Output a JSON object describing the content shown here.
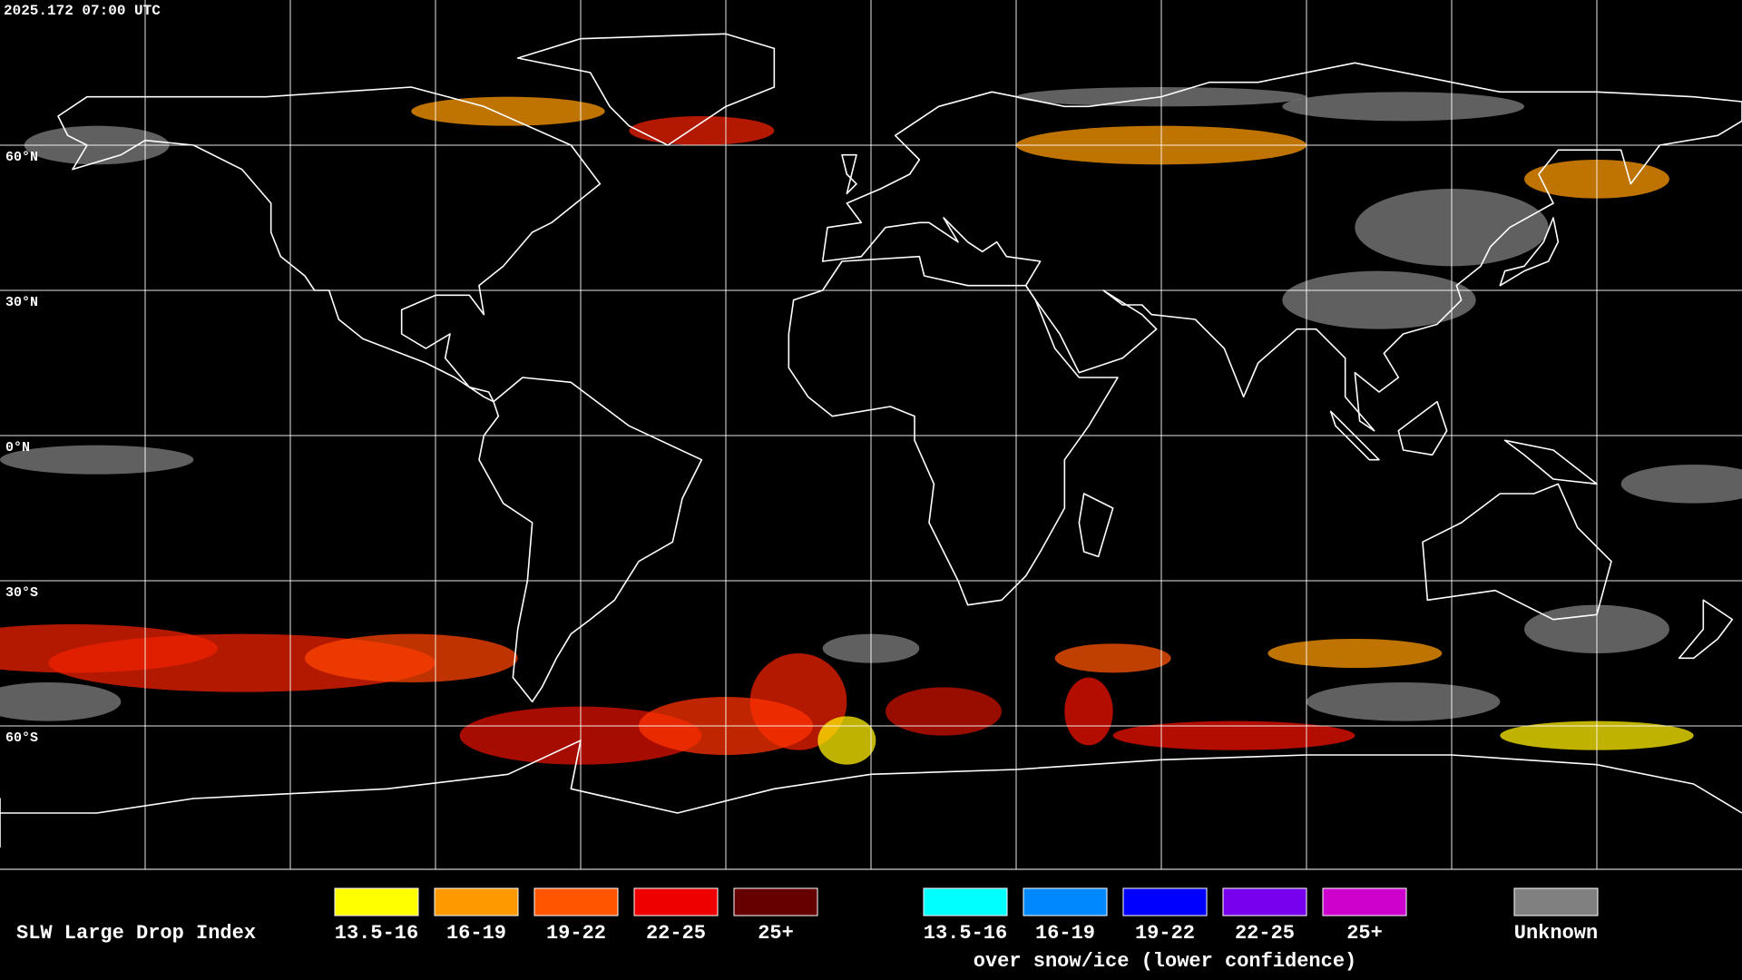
{
  "header": {
    "timestamp": "2025.172 07:00 UTC"
  },
  "map": {
    "latitude_labels": [
      "60°N",
      "30°N",
      "0°N",
      "30°S",
      "60°S"
    ]
  },
  "legend": {
    "title": "SLW Large Drop Index",
    "groups": [
      {
        "items": [
          {
            "label": "13.5-16",
            "color": "#ffff00"
          },
          {
            "label": "16-19",
            "color": "#ff9900"
          },
          {
            "label": "19-22",
            "color": "#ff5500"
          },
          {
            "label": "22-25",
            "color": "#ee0000"
          },
          {
            "label": "25+",
            "color": "#660000"
          }
        ]
      },
      {
        "items": [
          {
            "label": "13.5-16",
            "color": "#00ffff"
          },
          {
            "label": "16-19",
            "color": "#0088ff"
          },
          {
            "label": "19-22",
            "color": "#0000ff"
          },
          {
            "label": "22-25",
            "color": "#7700ee"
          },
          {
            "label": "25+",
            "color": "#cc00cc"
          }
        ],
        "caption": "over snow/ice (lower confidence)"
      },
      {
        "items": [
          {
            "label": "Unknown",
            "color": "#808080"
          }
        ]
      }
    ]
  }
}
